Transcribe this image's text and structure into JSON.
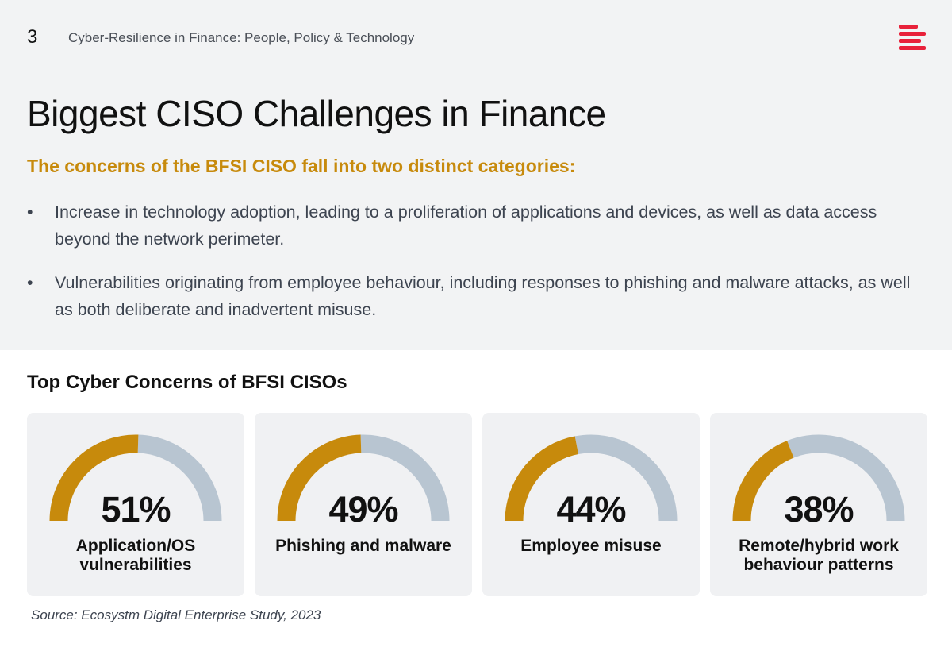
{
  "header": {
    "page_number": "3",
    "running_title": "Cyber-Resilience in Finance: People, Policy & Technology"
  },
  "title": "Biggest CISO Challenges in Finance",
  "subtitle": "The concerns of the BFSI CISO fall into two distinct categories:",
  "bullets": [
    "Increase in technology adoption, leading to a proliferation of applications and devices, as well as data access beyond the network perimeter.",
    "Vulnerabilities originating from employee behaviour, including responses to phishing and malware attacks, as well as both deliberate and inadvertent misuse."
  ],
  "bullet_marker": "•",
  "colors": {
    "accent": "#c78a0c",
    "gauge_track": "#b8c5d1",
    "logo": "#e8213a",
    "top_background": "#f2f3f4"
  },
  "chart_data": {
    "type": "gauge",
    "title": "Top Cyber Concerns of BFSI CISOs",
    "unit": "%",
    "range": [
      0,
      100
    ],
    "categories": [
      "Application/OS vulnerabilities",
      "Phishing and malware",
      "Employee misuse",
      "Remote/hybrid work behaviour patterns"
    ],
    "values": [
      51,
      49,
      44,
      38
    ],
    "value_labels": [
      "51%",
      "49%",
      "44%",
      "38%"
    ]
  },
  "gauges": [
    {
      "value_label": "51%",
      "label": "Application/OS vulnerabilities"
    },
    {
      "value_label": "49%",
      "label": "Phishing and malware"
    },
    {
      "value_label": "44%",
      "label": "Employee misuse"
    },
    {
      "value_label": "38%",
      "label": "Remote/hybrid work behaviour patterns"
    }
  ],
  "source": "Source: Ecosystm Digital Enterprise Study, 2023"
}
